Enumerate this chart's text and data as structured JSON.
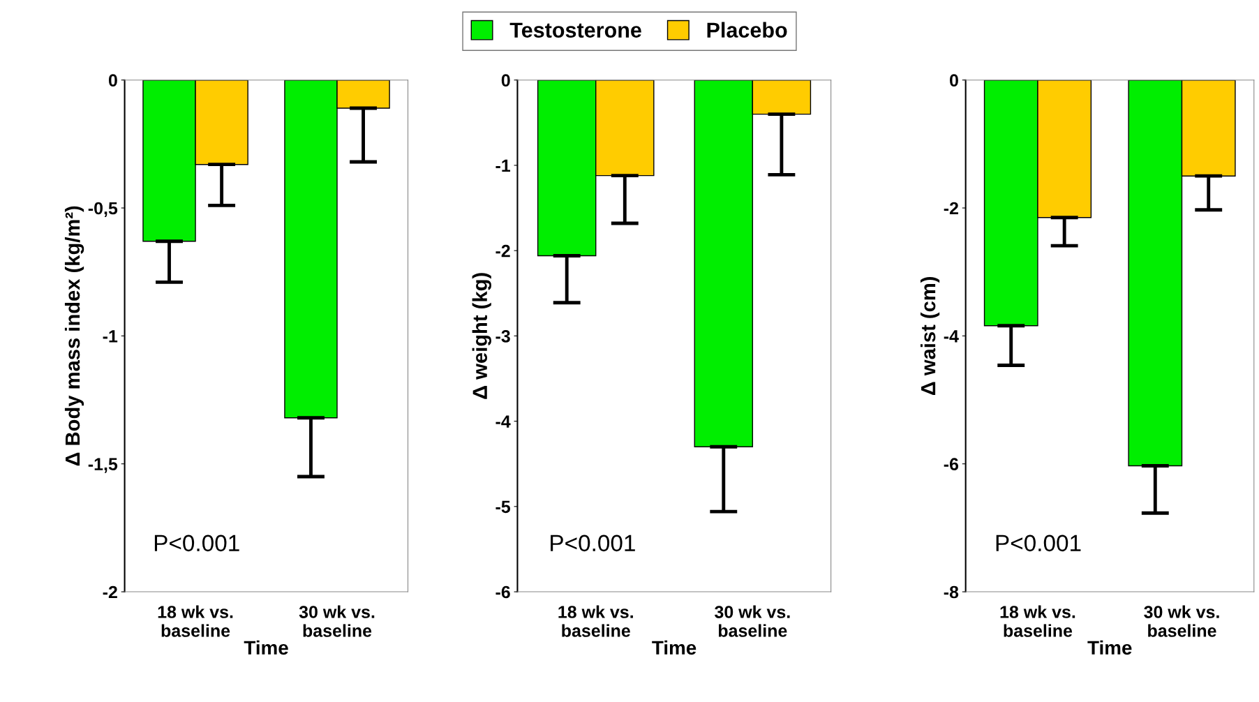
{
  "chart_data": [
    {
      "type": "bar",
      "ylabel": "Δ Body mass index (kg/m²)",
      "xlabel": "Time",
      "categories": [
        "18 wk vs.\nbaseline",
        "30 wk vs.\nbaseline"
      ],
      "ylim": [
        -2,
        0
      ],
      "yticks": [
        {
          "value": -2,
          "label": "-2"
        },
        {
          "value": -1.5,
          "label": "-1,5"
        },
        {
          "value": -1,
          "label": "-1"
        },
        {
          "value": -0.5,
          "label": "-0,5"
        },
        {
          "value": 0,
          "label": "0"
        }
      ],
      "legend": "top",
      "annotations": [
        "P<0.001"
      ],
      "series": [
        {
          "name": "Testosterone",
          "color": "#00ee00",
          "values": [
            -0.63,
            -1.32
          ],
          "errors": [
            [
              -0.79,
              -0.63
            ],
            [
              -1.55,
              -1.32
            ]
          ]
        },
        {
          "name": "Placebo",
          "color": "#ffcc00",
          "values": [
            -0.33,
            -0.11
          ],
          "errors": [
            [
              -0.49,
              -0.33
            ],
            [
              -0.32,
              -0.11
            ]
          ]
        }
      ]
    },
    {
      "type": "bar",
      "ylabel": "Δ weight (kg)",
      "xlabel": "Time",
      "categories": [
        "18 wk vs.\nbaseline",
        "30 wk vs.\nbaseline"
      ],
      "ylim": [
        -6,
        0
      ],
      "yticks": [
        -6,
        -5,
        -4,
        -3,
        -2,
        -1,
        0
      ],
      "annotations": [
        "P<0.001"
      ],
      "series": [
        {
          "color": "#00ee00",
          "values": [
            -2.06,
            -4.3
          ],
          "errors": [
            [
              -2.61,
              -2.06
            ],
            [
              -5.06,
              -4.3
            ]
          ]
        },
        {
          "color": "#ffcc00",
          "values": [
            -1.12,
            -0.4
          ],
          "errors": [
            [
              -1.68,
              -1.12
            ],
            [
              -1.11,
              -0.4
            ]
          ]
        }
      ]
    },
    {
      "type": "bar",
      "ylabel": "Δ waist (cm)",
      "xlabel": "Time",
      "categories": [
        "18 wk vs.\nbaseline",
        "30 wk vs.\nbaseline"
      ],
      "ylim": [
        -8,
        0
      ],
      "yticks": [
        -8,
        -6,
        -4,
        -2,
        0
      ],
      "annotations": [
        "P<0.001"
      ],
      "series": [
        {
          "color": "#00ee00",
          "values": [
            -3.84,
            -6.03
          ],
          "errors": [
            [
              -4.46,
              -3.84
            ],
            [
              -6.77,
              -6.03
            ]
          ]
        },
        {
          "color": "#ffcc00",
          "values": [
            -2.15,
            -1.5
          ],
          "errors": [
            [
              -2.59,
              -2.15
            ],
            [
              -2.03,
              -1.5
            ]
          ]
        }
      ]
    }
  ]
}
